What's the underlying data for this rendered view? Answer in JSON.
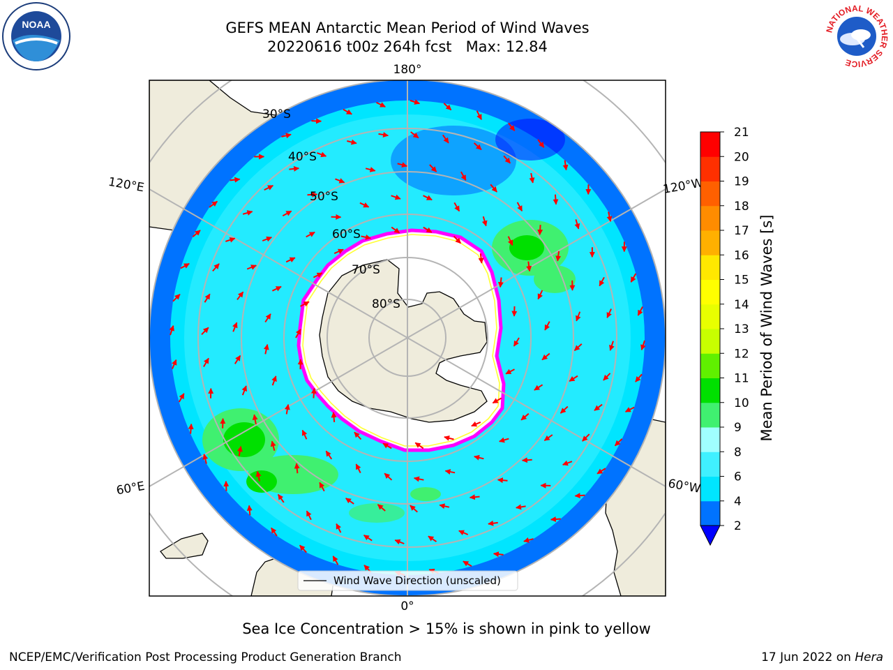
{
  "title": {
    "line1": "GEFS MEAN Antarctic Mean Period of Wind Waves",
    "line2": "20220616 t00z 264h fcst   Max: 12.84"
  },
  "map": {
    "projection": "south-polar-stereographic",
    "longitude_labels": [
      "180°",
      "120°E",
      "120°W",
      "60°E",
      "60°W",
      "0°"
    ],
    "latitude_labels": [
      "30°S",
      "40°S",
      "50°S",
      "60°S",
      "70°S",
      "80°S"
    ],
    "legend_label": "Wind Wave Direction (unscaled)",
    "arrow_color": "#ff0000",
    "land_color": "#efecdc",
    "ice_edge_colors": [
      "#ff00ff",
      "#ff1493",
      "#ffff00"
    ]
  },
  "colorbar": {
    "label": "Mean Period of Wind Waves [s]",
    "ticks": [
      "2",
      "4",
      "6",
      "8",
      "9",
      "10",
      "11",
      "12",
      "13",
      "14",
      "15",
      "16",
      "17",
      "18",
      "19",
      "20",
      "21"
    ],
    "colors": [
      "#0073ff",
      "#00e5ff",
      "#40f0ff",
      "#a0ffff",
      "#40f070",
      "#00e000",
      "#60f000",
      "#c8ff00",
      "#e8ff00",
      "#ffff00",
      "#ffe800",
      "#ffb000",
      "#ff8c00",
      "#ff6000",
      "#ff3000",
      "#ff0000"
    ],
    "under_color": "#0000ff"
  },
  "caption": "Sea Ice Concentration > 15% is shown in pink to yellow",
  "footer": {
    "left": "NCEP/EMC/Verification Post Processing Product Generation Branch",
    "right_prefix": "17 Jun 2022 on ",
    "right_italic": "Hera"
  },
  "logos": {
    "left": "NOAA",
    "right_ring": "NATIONAL WEATHER SERVICE"
  }
}
